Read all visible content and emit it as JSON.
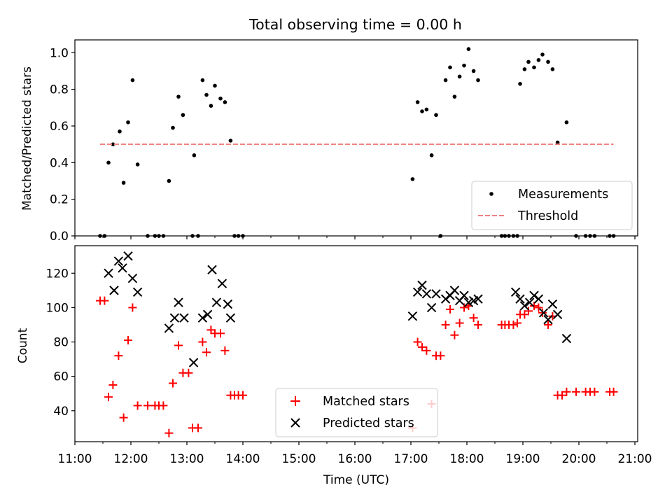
{
  "title": "Total observing time = 0.00 h",
  "xlabel": "Time (UTC)",
  "x_ticks": [
    "11:00",
    "12:00",
    "13:00",
    "14:00",
    "15:00",
    "16:00",
    "17:00",
    "18:00",
    "19:00",
    "20:00",
    "21:00"
  ],
  "chart_data": [
    {
      "type": "scatter",
      "ylabel": "Matched/Predicted stars",
      "xlim": [
        11.0,
        21.05
      ],
      "ylim": [
        0,
        1.07
      ],
      "y_ticks": [
        "0.0",
        "0.2",
        "0.4",
        "0.6",
        "0.8",
        "1.0"
      ],
      "legend_position": "bottom-right",
      "series": [
        {
          "name": "Measurements",
          "marker": "dot",
          "color": "#000000",
          "x": [
            11.45,
            11.53,
            11.6,
            11.68,
            11.8,
            11.87,
            11.95,
            12.03,
            12.12,
            12.3,
            12.43,
            12.5,
            12.58,
            12.68,
            12.75,
            12.85,
            12.93,
            13.1,
            13.13,
            13.2,
            13.28,
            13.35,
            13.43,
            13.5,
            13.6,
            13.68,
            13.78,
            13.85,
            13.92,
            14.0,
            17.03,
            17.12,
            17.2,
            17.28,
            17.37,
            17.45,
            17.53,
            17.62,
            17.7,
            17.78,
            17.87,
            17.95,
            18.03,
            18.12,
            18.2,
            18.62,
            18.68,
            18.75,
            18.83,
            18.9,
            18.95,
            19.03,
            19.1,
            19.2,
            19.28,
            19.35,
            19.45,
            19.53,
            19.62,
            19.78,
            19.95,
            20.12,
            20.2,
            20.28,
            20.55,
            20.62
          ],
          "y": [
            0.0,
            0.0,
            0.4,
            0.5,
            0.57,
            0.29,
            0.62,
            0.85,
            0.39,
            0.0,
            0.0,
            0.0,
            0.0,
            0.3,
            0.59,
            0.76,
            0.66,
            0.0,
            0.44,
            0.0,
            0.85,
            0.77,
            0.71,
            0.82,
            0.75,
            0.73,
            0.52,
            0.0,
            0.0,
            0.0,
            0.31,
            0.73,
            0.68,
            0.69,
            0.44,
            0.66,
            0.0,
            0.85,
            0.92,
            0.76,
            0.87,
            0.93,
            1.02,
            0.9,
            0.85,
            0.0,
            0.0,
            0.0,
            0.0,
            0.0,
            0.83,
            0.91,
            0.95,
            0.92,
            0.96,
            0.99,
            0.95,
            0.91,
            0.51,
            0.62,
            0.0,
            0.0,
            0.0,
            0.0,
            0.0,
            0.0
          ]
        },
        {
          "name": "Threshold",
          "marker": "dashed-line",
          "color": "#f08080",
          "x": [
            11.45,
            20.62
          ],
          "y": [
            0.5,
            0.5
          ]
        }
      ]
    },
    {
      "type": "scatter",
      "ylabel": "Count",
      "xlim": [
        11.0,
        21.05
      ],
      "ylim": [
        22,
        136
      ],
      "y_ticks": [
        "40",
        "60",
        "80",
        "100",
        "120"
      ],
      "legend_position": "lower-center",
      "series": [
        {
          "name": "Matched stars",
          "marker": "plus",
          "color": "#ff0000",
          "x": [
            11.45,
            11.53,
            11.6,
            11.68,
            11.78,
            11.87,
            11.95,
            12.03,
            12.12,
            12.3,
            12.43,
            12.5,
            12.58,
            12.68,
            12.75,
            12.85,
            12.93,
            13.03,
            13.1,
            13.2,
            13.28,
            13.35,
            13.43,
            13.5,
            13.6,
            13.68,
            13.78,
            13.85,
            13.92,
            14.0,
            17.03,
            17.12,
            17.2,
            17.28,
            17.37,
            17.45,
            17.53,
            17.62,
            17.7,
            17.78,
            17.87,
            17.95,
            18.03,
            18.12,
            18.2,
            18.62,
            18.68,
            18.75,
            18.83,
            18.9,
            18.95,
            19.03,
            19.1,
            19.2,
            19.28,
            19.35,
            19.45,
            19.53,
            19.62,
            19.7,
            19.78,
            19.95,
            20.12,
            20.2,
            20.28,
            20.55,
            20.62
          ],
          "y": [
            104,
            104,
            48,
            55,
            72,
            36,
            81,
            100,
            43,
            43,
            43,
            43,
            43,
            27,
            56,
            78,
            62,
            62,
            30,
            30,
            80,
            74,
            87,
            85,
            85,
            75,
            49,
            49,
            49,
            49,
            30,
            80,
            77,
            75,
            44,
            72,
            72,
            90,
            99,
            84,
            91,
            100,
            101,
            94,
            90,
            90,
            90,
            90,
            90,
            91,
            96,
            96,
            98,
            101,
            100,
            97,
            90,
            95,
            49,
            49,
            51,
            51,
            51,
            51,
            51,
            51,
            51
          ]
        },
        {
          "name": "Predicted stars",
          "marker": "x",
          "color": "#000000",
          "x": [
            11.6,
            11.7,
            11.78,
            11.85,
            11.95,
            12.03,
            12.12,
            12.68,
            12.78,
            12.85,
            12.95,
            13.12,
            13.28,
            13.37,
            13.45,
            13.53,
            13.63,
            13.73,
            13.78,
            17.03,
            17.12,
            17.2,
            17.28,
            17.37,
            17.45,
            17.62,
            17.7,
            17.78,
            17.87,
            17.95,
            18.03,
            18.12,
            18.2,
            18.87,
            18.95,
            19.03,
            19.12,
            19.2,
            19.28,
            19.37,
            19.45,
            19.53,
            19.62,
            19.78
          ],
          "y": [
            120,
            110,
            127,
            123,
            130,
            117,
            109,
            88,
            94,
            103,
            94,
            68,
            94,
            96,
            122,
            103,
            114,
            102,
            94,
            95,
            109,
            113,
            108,
            100,
            108,
            105,
            107,
            110,
            104,
            107,
            103,
            104,
            105,
            109,
            105,
            101,
            103,
            107,
            105,
            97,
            93,
            102,
            96,
            82
          ]
        }
      ]
    }
  ]
}
